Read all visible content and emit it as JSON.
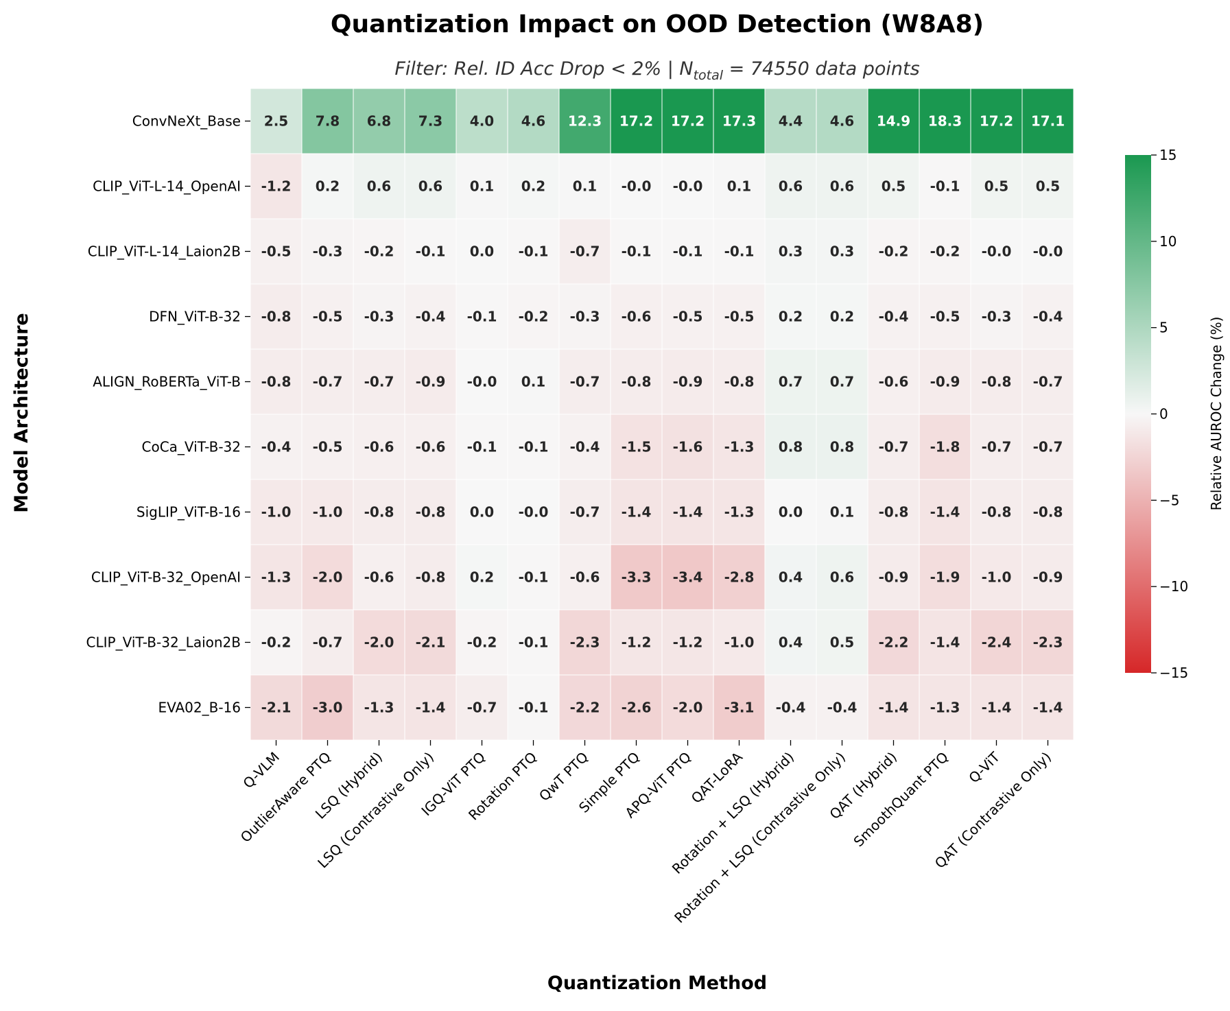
{
  "chart_data": {
    "type": "heatmap",
    "title": "Quantization Impact on OOD Detection (W8A8)",
    "subtitle": {
      "prefix": "Filter: Rel. ID Acc Drop < 2% | ",
      "n_symbol": "N",
      "n_subscript": "total",
      "suffix": " = 74550 data points"
    },
    "xlabel": "Quantization Method",
    "ylabel": "Model Architecture",
    "colorbar_label": "Relative AUROC Change (%)",
    "colorbar_range": [
      -15,
      15
    ],
    "colorbar_ticks": [
      "15",
      "10",
      "5",
      "0",
      "−5",
      "−10",
      "−15"
    ],
    "colors": {
      "negative": "#d62728",
      "zero": "#f7f7f7",
      "positive": "#1a9850"
    },
    "columns": [
      "Q-VLM",
      "OutlierAware PTQ",
      "LSQ (Hybrid)",
      "LSQ (Contrastive Only)",
      "IGQ-ViT PTQ",
      "Rotation PTQ",
      "QwT PTQ",
      "Simple PTQ",
      "APQ-ViT PTQ",
      "QAT-LoRA",
      "Rotation + LSQ (Hybrid)",
      "Rotation + LSQ (Contrastive Only)",
      "QAT (Hybrid)",
      "SmoothQuant PTQ",
      "Q-ViT",
      "QAT (Contrastive Only)"
    ],
    "rows": [
      "ConvNeXt_Base",
      "CLIP_ViT-L-14_OpenAI",
      "CLIP_ViT-L-14_Laion2B",
      "DFN_ViT-B-32",
      "ALIGN_RoBERTa_ViT-B",
      "CoCa_ViT-B-32",
      "SigLIP_ViT-B-16",
      "CLIP_ViT-B-32_OpenAI",
      "CLIP_ViT-B-32_Laion2B",
      "EVA02_B-16"
    ],
    "values": [
      [
        "2.5",
        "7.8",
        "6.8",
        "7.3",
        "4.0",
        "4.6",
        "12.3",
        "17.2",
        "17.2",
        "17.3",
        "4.4",
        "4.6",
        "14.9",
        "18.3",
        "17.2",
        "17.1"
      ],
      [
        "-1.2",
        "0.2",
        "0.6",
        "0.6",
        "0.1",
        "0.2",
        "0.1",
        "-0.0",
        "-0.0",
        "0.1",
        "0.6",
        "0.6",
        "0.5",
        "-0.1",
        "0.5",
        "0.5"
      ],
      [
        "-0.5",
        "-0.3",
        "-0.2",
        "-0.1",
        "0.0",
        "-0.1",
        "-0.7",
        "-0.1",
        "-0.1",
        "-0.1",
        "0.3",
        "0.3",
        "-0.2",
        "-0.2",
        "-0.0",
        "-0.0"
      ],
      [
        "-0.8",
        "-0.5",
        "-0.3",
        "-0.4",
        "-0.1",
        "-0.2",
        "-0.3",
        "-0.6",
        "-0.5",
        "-0.5",
        "0.2",
        "0.2",
        "-0.4",
        "-0.5",
        "-0.3",
        "-0.4"
      ],
      [
        "-0.8",
        "-0.7",
        "-0.7",
        "-0.9",
        "-0.0",
        "0.1",
        "-0.7",
        "-0.8",
        "-0.9",
        "-0.8",
        "0.7",
        "0.7",
        "-0.6",
        "-0.9",
        "-0.8",
        "-0.7"
      ],
      [
        "-0.4",
        "-0.5",
        "-0.6",
        "-0.6",
        "-0.1",
        "-0.1",
        "-0.4",
        "-1.5",
        "-1.6",
        "-1.3",
        "0.8",
        "0.8",
        "-0.7",
        "-1.8",
        "-0.7",
        "-0.7"
      ],
      [
        "-1.0",
        "-1.0",
        "-0.8",
        "-0.8",
        "0.0",
        "-0.0",
        "-0.7",
        "-1.4",
        "-1.4",
        "-1.3",
        "0.0",
        "0.1",
        "-0.8",
        "-1.4",
        "-0.8",
        "-0.8"
      ],
      [
        "-1.3",
        "-2.0",
        "-0.6",
        "-0.8",
        "0.2",
        "-0.1",
        "-0.6",
        "-3.3",
        "-3.4",
        "-2.8",
        "0.4",
        "0.6",
        "-0.9",
        "-1.9",
        "-1.0",
        "-0.9"
      ],
      [
        "-0.2",
        "-0.7",
        "-2.0",
        "-2.1",
        "-0.2",
        "-0.1",
        "-2.3",
        "-1.2",
        "-1.2",
        "-1.0",
        "0.4",
        "0.5",
        "-2.2",
        "-1.4",
        "-2.4",
        "-2.3"
      ],
      [
        "-2.1",
        "-3.0",
        "-1.3",
        "-1.4",
        "-0.7",
        "-0.1",
        "-2.2",
        "-2.6",
        "-2.0",
        "-3.1",
        "-0.4",
        "-0.4",
        "-1.4",
        "-1.3",
        "-1.4",
        "-1.4"
      ]
    ]
  }
}
